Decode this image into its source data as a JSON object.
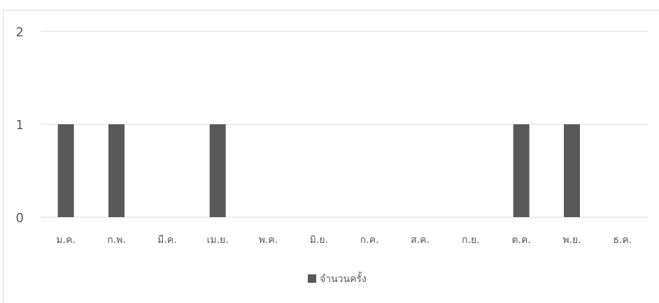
{
  "chart_data": {
    "type": "bar",
    "title": "",
    "xlabel": "",
    "ylabel": "",
    "categories": [
      "ม.ค.",
      "ก.พ.",
      "มี.ค.",
      "เม.ย.",
      "พ.ค.",
      "มิ.ย.",
      "ก.ค.",
      "ส.ค.",
      "ก.ย.",
      "ต.ค.",
      "พ.ย.",
      "ธ.ค."
    ],
    "series": [
      {
        "name": "จำนวนครั้ง",
        "values": [
          1,
          1,
          0,
          1,
          0,
          0,
          0,
          0,
          0,
          1,
          1,
          0
        ],
        "color": "#595959"
      }
    ],
    "ylim": [
      0,
      2
    ],
    "yticks": [
      0,
      1,
      2
    ],
    "grid": true,
    "legend_position": "bottom"
  }
}
